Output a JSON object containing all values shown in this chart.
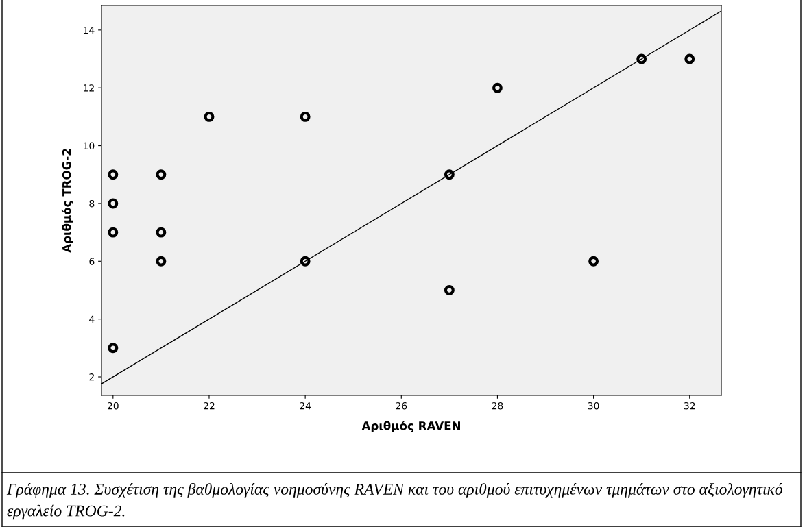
{
  "chart_data": {
    "type": "scatter",
    "xlabel": "Αριθμός RAVEN",
    "ylabel": "Αριθμός TROG-2",
    "xlim": [
      19.76,
      32.66
    ],
    "ylim": [
      1.36,
      14.85
    ],
    "xticks": [
      20,
      22,
      24,
      26,
      28,
      30,
      32
    ],
    "yticks": [
      2,
      4,
      6,
      8,
      10,
      12,
      14
    ],
    "grid": false,
    "legend": false,
    "series": [
      {
        "marker": "circle",
        "color": "#000000",
        "x": [
          20,
          20,
          20,
          20,
          21,
          21,
          21,
          22,
          24,
          24,
          27,
          27,
          28,
          30,
          31,
          32
        ],
        "values": [
          9,
          8,
          7,
          3,
          9,
          7,
          6,
          11,
          11,
          6,
          9,
          5,
          12,
          6,
          13,
          13
        ]
      },
      {
        "type": "line",
        "color": "#000000",
        "line_style": "solid",
        "x": [
          19.76,
          32.66
        ],
        "values": [
          1.76,
          14.66
        ]
      }
    ],
    "annotations": [
      "Γράφημα 13. Συσχέτιση της βαθμολογίας νοημοσύνης RAVEN και του αριθμού επιτυχημένων τμημάτων στο αξιολογητικό εργαλείο TROG-2."
    ]
  }
}
